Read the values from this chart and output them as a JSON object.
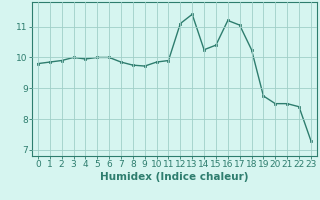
{
  "x": [
    0,
    1,
    2,
    3,
    4,
    5,
    6,
    7,
    8,
    9,
    10,
    11,
    12,
    13,
    14,
    15,
    16,
    17,
    18,
    19,
    20,
    21,
    22,
    23
  ],
  "y": [
    9.8,
    9.85,
    9.9,
    10.0,
    9.95,
    10.0,
    10.0,
    9.85,
    9.75,
    9.72,
    9.85,
    9.9,
    11.1,
    11.4,
    10.25,
    10.4,
    11.2,
    11.05,
    10.25,
    8.75,
    8.5,
    8.5,
    8.4,
    7.3
  ],
  "xlabel": "Humidex (Indice chaleur)",
  "line_color": "#2e7d6e",
  "marker_color": "#2e7d6e",
  "bg_color": "#d6f5f0",
  "grid_color": "#a0cfc8",
  "axis_color": "#2e7d6e",
  "ylim": [
    6.8,
    11.8
  ],
  "yticks": [
    7,
    8,
    9,
    10,
    11
  ],
  "xticks": [
    0,
    1,
    2,
    3,
    4,
    5,
    6,
    7,
    8,
    9,
    10,
    11,
    12,
    13,
    14,
    15,
    16,
    17,
    18,
    19,
    20,
    21,
    22,
    23
  ],
  "xlabel_fontsize": 7.5,
  "tick_fontsize": 6.5
}
